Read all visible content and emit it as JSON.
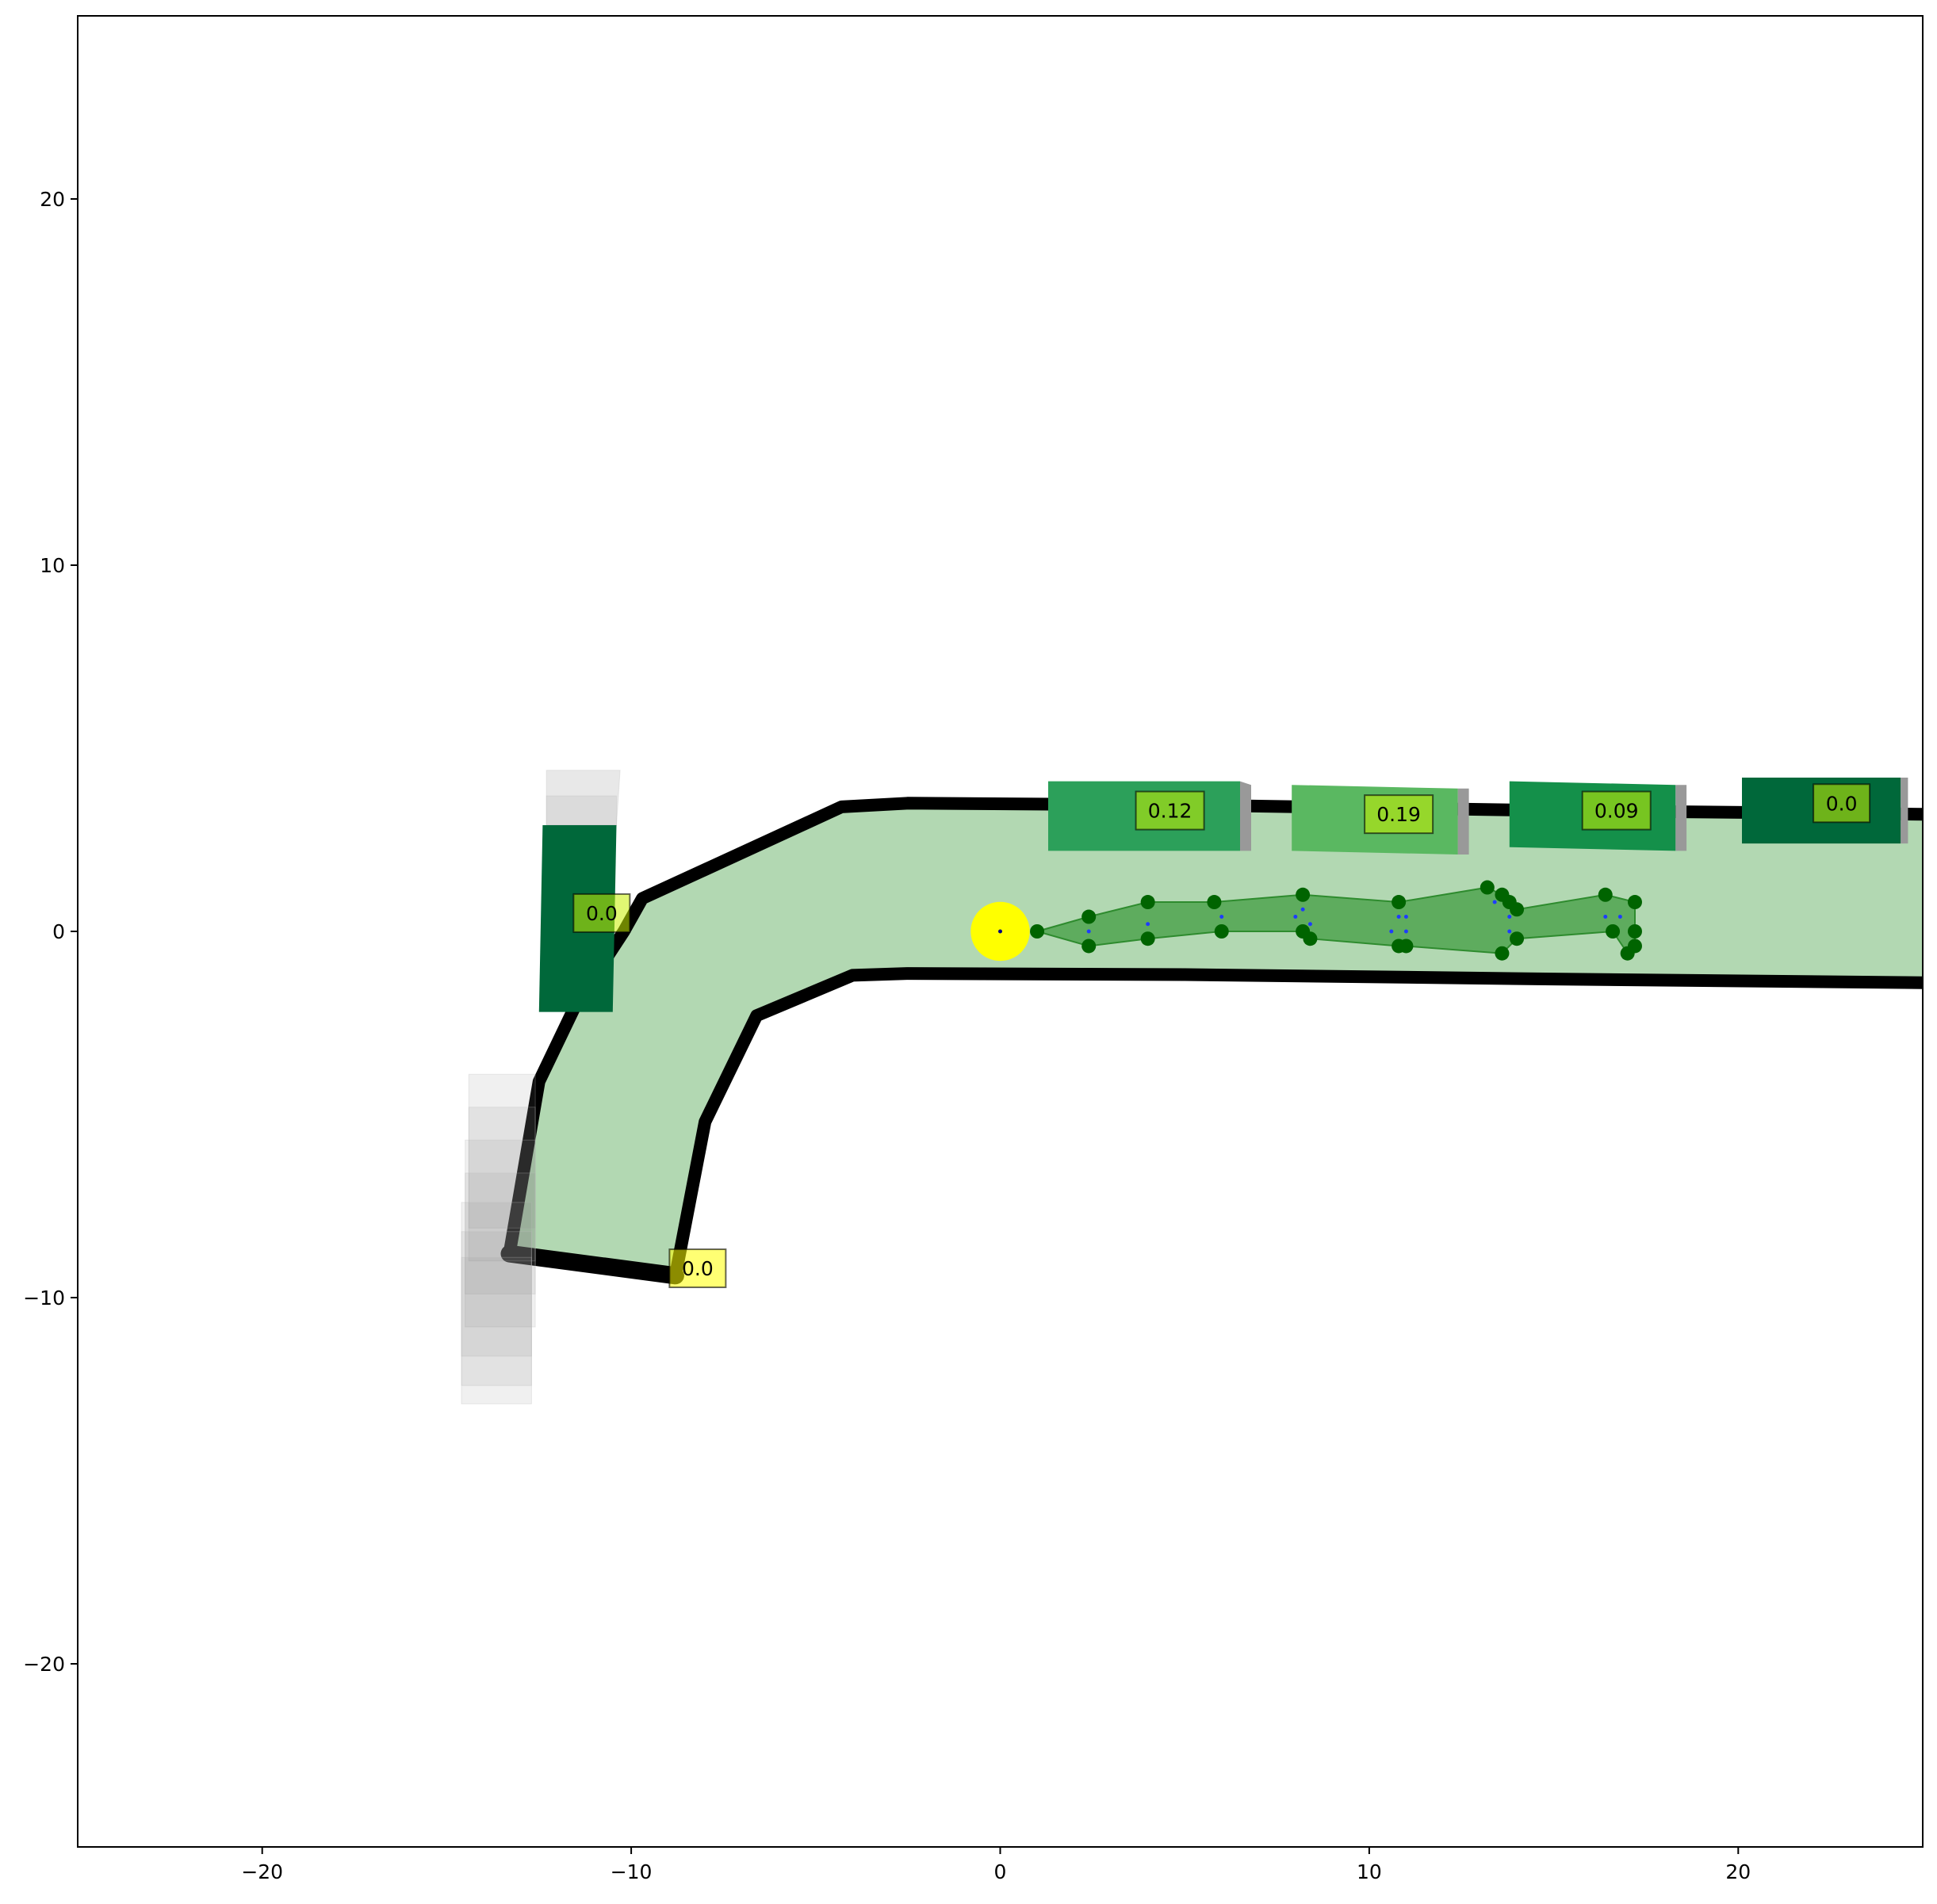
{
  "chart_data": {
    "type": "scatter",
    "xlim": [
      -25,
      25
    ],
    "ylim": [
      -25,
      25
    ],
    "grid": false,
    "x_ticks": [
      {
        "value": -20,
        "label": "−20"
      },
      {
        "value": -10,
        "label": "−10"
      },
      {
        "value": 0,
        "label": "0"
      },
      {
        "value": 10,
        "label": "10"
      },
      {
        "value": 20,
        "label": "20"
      }
    ],
    "y_ticks": [
      {
        "value": 20,
        "label": "20"
      },
      {
        "value": 10,
        "label": "10"
      },
      {
        "value": 0,
        "label": "0"
      },
      {
        "value": -10,
        "label": "−10"
      },
      {
        "value": -20,
        "label": "−20"
      }
    ],
    "lane_area": [
      [
        -8.8,
        -9.4
      ],
      [
        -8.0,
        -5.2
      ],
      [
        -6.6,
        -2.3
      ],
      [
        -4.0,
        -1.2
      ],
      [
        -2.5,
        -1.15
      ],
      [
        5,
        -1.18
      ],
      [
        15,
        -1.3
      ],
      [
        25,
        -1.4
      ],
      [
        25,
        3.2
      ],
      [
        15,
        3.3
      ],
      [
        5,
        3.45
      ],
      [
        -2.5,
        3.5
      ],
      [
        -4.3,
        3.4
      ],
      [
        -9.7,
        0.9
      ],
      [
        -10.2,
        0.0
      ],
      [
        -11.5,
        -2.0
      ],
      [
        -12.5,
        -4.1
      ],
      [
        -13.3,
        -8.8
      ]
    ],
    "boundary_upper": [
      [
        -13.3,
        -8.8
      ],
      [
        -12.5,
        -4.1
      ],
      [
        -11.5,
        -2.0
      ],
      [
        -10.2,
        0.0
      ],
      [
        -9.7,
        0.9
      ],
      [
        -4.3,
        3.4
      ],
      [
        -2.5,
        3.5
      ],
      [
        5,
        3.45
      ],
      [
        15,
        3.3
      ],
      [
        25,
        3.2
      ]
    ],
    "boundary_lower": [
      [
        -8.8,
        -9.4
      ],
      [
        -8.0,
        -5.2
      ],
      [
        -6.6,
        -2.3
      ],
      [
        -4.0,
        -1.2
      ],
      [
        -2.5,
        -1.15
      ],
      [
        5,
        -1.18
      ],
      [
        15,
        -1.3
      ],
      [
        25,
        -1.4
      ]
    ],
    "boundary_end": [
      [
        -13.3,
        -8.8
      ],
      [
        -8.8,
        -9.4
      ]
    ],
    "vehicles": [
      {
        "corners": [
          [
            1.3,
            2.2
          ],
          [
            6.5,
            2.2
          ],
          [
            6.5,
            4.1
          ],
          [
            1.3,
            4.1
          ]
        ],
        "color": "#2ca05a",
        "label": "0.12",
        "label_pos": [
          4.6,
          3.3
        ]
      },
      {
        "corners": [
          [
            7.9,
            2.2
          ],
          [
            12.4,
            2.1
          ],
          [
            12.4,
            3.9
          ],
          [
            7.9,
            4.0
          ]
        ],
        "color": "#5ab861",
        "label": "0.19",
        "label_pos": [
          10.8,
          3.2
        ]
      },
      {
        "corners": [
          [
            13.8,
            2.3
          ],
          [
            18.3,
            2.2
          ],
          [
            18.3,
            4.0
          ],
          [
            13.8,
            4.1
          ]
        ],
        "color": "#14904a",
        "label": "0.09",
        "label_pos": [
          16.7,
          3.3
        ]
      },
      {
        "corners": [
          [
            20.1,
            2.4
          ],
          [
            24.4,
            2.4
          ],
          [
            24.4,
            4.2
          ],
          [
            20.1,
            4.2
          ]
        ],
        "color": "#00683a",
        "label": "0.0",
        "label_pos": [
          22.8,
          3.5
        ]
      },
      {
        "corners": [
          [
            -12.4,
            2.9
          ],
          [
            -10.4,
            2.9
          ],
          [
            -10.5,
            -2.2
          ],
          [
            -12.5,
            -2.2
          ]
        ],
        "color": "#00683a",
        "label": "0.0",
        "label_pos": [
          -10.8,
          0.5
        ]
      }
    ],
    "vehicle_shadows": [
      {
        "corners": [
          [
            6.5,
            2.2
          ],
          [
            6.8,
            2.2
          ],
          [
            6.8,
            4.0
          ],
          [
            6.5,
            4.1
          ]
        ]
      },
      {
        "corners": [
          [
            12.4,
            2.1
          ],
          [
            12.7,
            2.1
          ],
          [
            12.7,
            3.9
          ],
          [
            12.4,
            3.9
          ]
        ]
      },
      {
        "corners": [
          [
            18.3,
            2.2
          ],
          [
            18.6,
            2.2
          ],
          [
            18.6,
            4.0
          ],
          [
            18.3,
            4.0
          ]
        ]
      },
      {
        "corners": [
          [
            24.4,
            2.4
          ],
          [
            24.6,
            2.4
          ],
          [
            24.6,
            4.2
          ],
          [
            24.4,
            4.2
          ]
        ]
      }
    ],
    "ghost_boxes": [
      {
        "corners": [
          [
            -12.3,
            4.4
          ],
          [
            -10.3,
            4.4
          ],
          [
            -10.4,
            2.9
          ],
          [
            -12.3,
            2.9
          ]
        ],
        "opacity": 0.18
      },
      {
        "corners": [
          [
            -12.3,
            3.7
          ],
          [
            -10.4,
            3.7
          ],
          [
            -10.4,
            2.9
          ],
          [
            -12.3,
            2.9
          ]
        ],
        "opacity": 0.12
      },
      {
        "corners": [
          [
            -14.4,
            -3.9
          ],
          [
            -12.6,
            -3.9
          ],
          [
            -12.6,
            -8.1
          ],
          [
            -14.4,
            -8.1
          ]
        ],
        "opacity": 0.12
      },
      {
        "corners": [
          [
            -14.4,
            -4.8
          ],
          [
            -12.6,
            -4.8
          ],
          [
            -12.6,
            -9.0
          ],
          [
            -14.4,
            -9.0
          ]
        ],
        "opacity": 0.12
      },
      {
        "corners": [
          [
            -14.5,
            -5.7
          ],
          [
            -12.6,
            -5.7
          ],
          [
            -12.6,
            -9.9
          ],
          [
            -14.5,
            -9.9
          ]
        ],
        "opacity": 0.12
      },
      {
        "corners": [
          [
            -14.5,
            -6.6
          ],
          [
            -12.6,
            -6.6
          ],
          [
            -12.6,
            -10.8
          ],
          [
            -14.5,
            -10.8
          ]
        ],
        "opacity": 0.12
      },
      {
        "corners": [
          [
            -14.6,
            -7.4
          ],
          [
            -12.7,
            -7.4
          ],
          [
            -12.7,
            -11.6
          ],
          [
            -14.6,
            -11.6
          ]
        ],
        "opacity": 0.12
      },
      {
        "corners": [
          [
            -14.6,
            -8.2
          ],
          [
            -12.7,
            -8.2
          ],
          [
            -12.7,
            -12.4
          ],
          [
            -14.6,
            -12.4
          ]
        ],
        "opacity": 0.12
      },
      {
        "corners": [
          [
            -14.6,
            -8.9
          ],
          [
            -12.7,
            -8.9
          ],
          [
            -12.7,
            -12.9
          ],
          [
            -14.6,
            -12.9
          ]
        ],
        "opacity": 0.12
      }
    ],
    "end_label": {
      "label": "0.0",
      "pos": [
        -8.2,
        -9.2
      ]
    },
    "ego": {
      "center": [
        0,
        0
      ],
      "radius": 0.8
    },
    "predicted_path": {
      "polygon": [
        [
          1.0,
          0.0
        ],
        [
          2.4,
          0.4
        ],
        [
          4.0,
          0.8
        ],
        [
          5.8,
          0.8
        ],
        [
          8.2,
          1.0
        ],
        [
          10.8,
          0.8
        ],
        [
          13.2,
          1.2
        ],
        [
          13.6,
          1.0
        ],
        [
          13.8,
          0.8
        ],
        [
          14.0,
          0.6
        ],
        [
          16.4,
          1.0
        ],
        [
          17.2,
          0.8
        ],
        [
          17.2,
          0.0
        ],
        [
          17.2,
          -0.4
        ],
        [
          17.0,
          -0.6
        ],
        [
          16.6,
          0.0
        ],
        [
          14.0,
          -0.2
        ],
        [
          13.6,
          -0.6
        ],
        [
          11.0,
          -0.4
        ],
        [
          10.8,
          -0.4
        ],
        [
          8.4,
          -0.2
        ],
        [
          8.2,
          0.0
        ],
        [
          6.0,
          0.0
        ],
        [
          4.0,
          -0.2
        ],
        [
          2.4,
          -0.4
        ]
      ],
      "points": [
        [
          1.0,
          0.0
        ],
        [
          2.4,
          0.4
        ],
        [
          2.4,
          -0.4
        ],
        [
          4.0,
          0.8
        ],
        [
          4.0,
          -0.2
        ],
        [
          5.8,
          0.8
        ],
        [
          6.0,
          0.0
        ],
        [
          8.2,
          1.0
        ],
        [
          8.2,
          0.0
        ],
        [
          8.4,
          -0.2
        ],
        [
          10.8,
          0.8
        ],
        [
          10.8,
          -0.4
        ],
        [
          11.0,
          -0.4
        ],
        [
          13.2,
          1.2
        ],
        [
          13.6,
          1.0
        ],
        [
          13.8,
          0.8
        ],
        [
          14.0,
          0.6
        ],
        [
          13.6,
          -0.6
        ],
        [
          14.0,
          -0.2
        ],
        [
          16.4,
          1.0
        ],
        [
          17.2,
          0.8
        ],
        [
          16.6,
          0.0
        ],
        [
          17.2,
          0.0
        ],
        [
          17.2,
          -0.4
        ],
        [
          17.0,
          -0.6
        ]
      ],
      "markers": [
        [
          2.4,
          0.0
        ],
        [
          4.0,
          0.2
        ],
        [
          6.0,
          0.4
        ],
        [
          8.0,
          0.4
        ],
        [
          8.2,
          0.6
        ],
        [
          8.4,
          0.2
        ],
        [
          10.6,
          0.0
        ],
        [
          10.8,
          0.4
        ],
        [
          11.0,
          0.4
        ],
        [
          11.0,
          0.0
        ],
        [
          13.4,
          0.8
        ],
        [
          13.8,
          0.0
        ],
        [
          13.8,
          0.4
        ],
        [
          16.4,
          0.4
        ],
        [
          16.8,
          0.4
        ]
      ]
    }
  }
}
